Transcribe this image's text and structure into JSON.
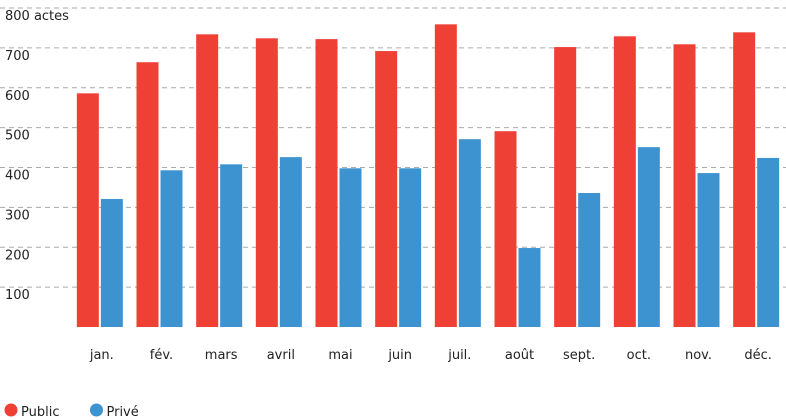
{
  "chart_data": {
    "type": "bar",
    "categories": [
      "jan.",
      "fév.",
      "mars",
      "avril",
      "mai",
      "juin",
      "juil.",
      "août",
      "sept.",
      "oct.",
      "nov.",
      "déc."
    ],
    "series": [
      {
        "name": "Public",
        "color": "#ee4035",
        "values": [
          586,
          664,
          734,
          724,
          722,
          692,
          759,
          491,
          702,
          729,
          709,
          739
        ]
      },
      {
        "name": "Privé",
        "color": "#3d93d0",
        "values": [
          321,
          393,
          408,
          426,
          398,
          398,
          471,
          198,
          336,
          451,
          386,
          424
        ]
      }
    ],
    "ylim": [
      0,
      800
    ],
    "yticks": [
      100,
      200,
      300,
      400,
      500,
      600,
      700,
      {
        "value": 800,
        "label": "800 actes"
      }
    ],
    "grid": true
  }
}
